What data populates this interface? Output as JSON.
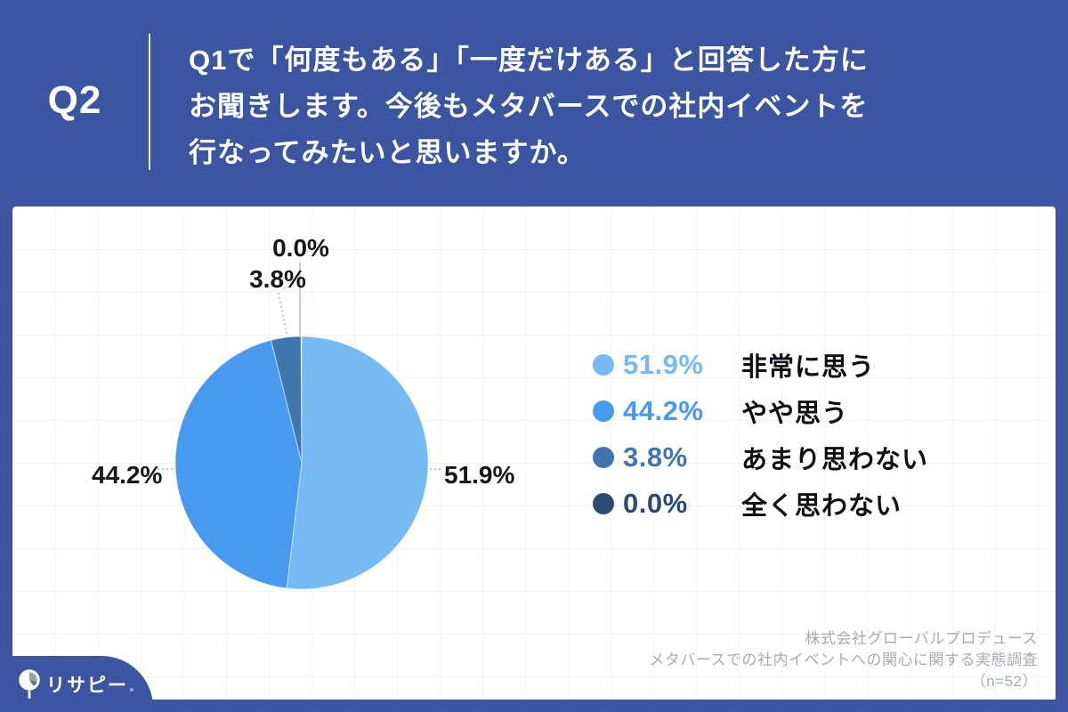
{
  "header": {
    "q_label": "Q2",
    "question": "Q1で「何度もある」「一度だけある」と回答した方に\nお聞きします。今後もメタバースでの社内イベントを\n行なってみたいと思いますか。"
  },
  "chart_data": {
    "type": "pie",
    "title": "今後もメタバースでの社内イベントを行なってみたいと思いますか",
    "start_angle": "12-oclock",
    "direction": "clockwise",
    "legend_position": "right",
    "slices": [
      {
        "label": "非常に思う",
        "value": 51.9,
        "pct_label": "51.9%",
        "color": "#75BAF3"
      },
      {
        "label": "やや思う",
        "value": 44.2,
        "pct_label": "44.2%",
        "color": "#4899F0"
      },
      {
        "label": "あまり思わない",
        "value": 3.8,
        "pct_label": "3.8%",
        "color": "#4076AD"
      },
      {
        "label": "全く思わない",
        "value": 0.0,
        "pct_label": "0.0%",
        "color": "#2B4B73"
      }
    ]
  },
  "footer": {
    "company": "株式会社グローバルプロデュース",
    "survey": "メタバースでの社内イベントへの関心に関する実態調査",
    "sample": "（n=52）"
  },
  "logo": {
    "text": "リサピー",
    "icon": "pie-magnifier-icon"
  },
  "colors": {
    "frame_blue": "#3B55A1",
    "card_bg": "#FFFFFF",
    "callout_text": "#151619",
    "credit_text": "#A7ACB4",
    "leader_solid": "#C9CCCF",
    "leader_dotted": "#BEC2C6"
  }
}
